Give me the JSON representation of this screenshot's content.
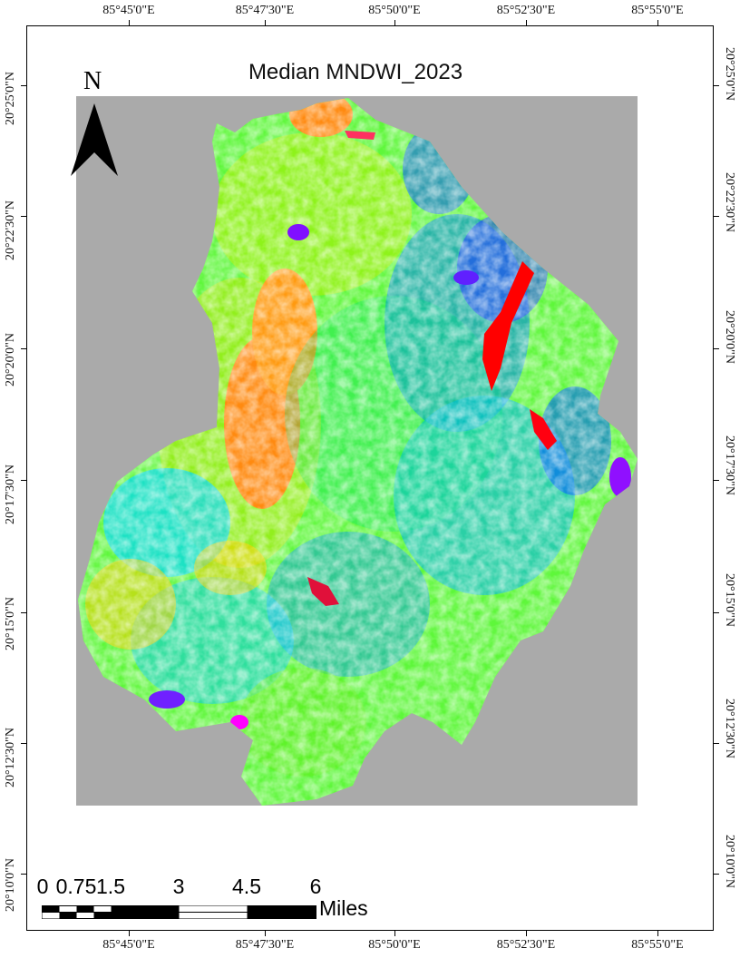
{
  "map": {
    "title": "Median MNDWI_2023",
    "north_label": "N",
    "longitude_labels": [
      "85°45'0\"E",
      "85°47'30\"E",
      "85°50'0\"E",
      "85°52'30\"E",
      "85°55'0\"E"
    ],
    "latitude_labels": [
      "20°25'0\"N",
      "20°22'30\"N",
      "20°20'0\"N",
      "20°17'30\"N",
      "20°15'0\"N",
      "20°12'30\"N",
      "20°10'0\"N"
    ],
    "scale_bar": {
      "labels": [
        "0",
        "0.75",
        "1.5",
        "3",
        "4.5",
        "6"
      ],
      "unit": "Miles"
    },
    "colors": {
      "background_gray": "#aaaaaa",
      "palette": [
        "#ff0000",
        "#ff7a00",
        "#ffd000",
        "#b7f000",
        "#3cff3c",
        "#00e0ff",
        "#0070ff",
        "#2030ff",
        "#8000ff",
        "#ff00ff"
      ]
    }
  }
}
